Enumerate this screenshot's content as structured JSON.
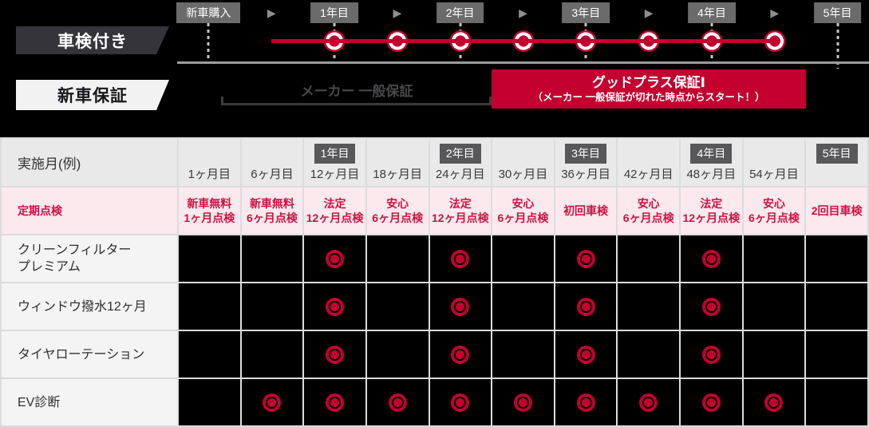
{
  "colors": {
    "brand_red": "#c3002f",
    "red_text": "#d01141",
    "pink_bg": "#fbe9ed",
    "timeline_badge_gray": "#6b6b6b",
    "table_badge_gray": "#58585b"
  },
  "timeline": {
    "inspection_label": "車検付き",
    "warranty_label": "新車保証",
    "arrow_glyph": "▶",
    "markers": [
      {
        "type": "milestone",
        "label": "新車購入",
        "dotted": true,
        "circle": false
      },
      {
        "type": "arrow",
        "dotted": false,
        "circle": false
      },
      {
        "type": "milestone",
        "label": "1年目",
        "dotted": true,
        "circle": true
      },
      {
        "type": "arrow",
        "dotted": false,
        "circle": true
      },
      {
        "type": "milestone",
        "label": "2年目",
        "dotted": true,
        "circle": true
      },
      {
        "type": "arrow",
        "dotted": false,
        "circle": true
      },
      {
        "type": "milestone",
        "label": "3年目",
        "dotted": true,
        "circle": true
      },
      {
        "type": "arrow",
        "dotted": false,
        "circle": true
      },
      {
        "type": "milestone",
        "label": "4年目",
        "dotted": true,
        "circle": true
      },
      {
        "type": "arrow",
        "dotted": false,
        "circle": true
      },
      {
        "type": "milestone",
        "label": "5年目",
        "dotted": true,
        "circle": false
      }
    ],
    "maker_warranty": "メーカー 一般保証",
    "goodplus_title": "グッドプラス保証Ⅰ",
    "goodplus_sub": "（メーカー 一般保証が切れた時点からスタート！）"
  },
  "table": {
    "corner_label": "実施月(例)",
    "columns": [
      {
        "year": "",
        "month": "1ヶ月目"
      },
      {
        "year": "",
        "month": "6ヶ月目"
      },
      {
        "year": "1年目",
        "month": "12ヶ月目"
      },
      {
        "year": "",
        "month": "18ヶ月目"
      },
      {
        "year": "2年目",
        "month": "24ヶ月目"
      },
      {
        "year": "",
        "month": "30ヶ月目"
      },
      {
        "year": "3年目",
        "month": "36ヶ月目"
      },
      {
        "year": "",
        "month": "42ヶ月目"
      },
      {
        "year": "4年目",
        "month": "48ヶ月目"
      },
      {
        "year": "",
        "month": "54ヶ月目"
      },
      {
        "year": "5年目",
        "month": ""
      }
    ],
    "inspection_row": {
      "label": "定期点検",
      "cells": [
        [
          "新車無料",
          "1ヶ月点検"
        ],
        [
          "新車無料",
          "6ヶ月点検"
        ],
        [
          "法定",
          "12ヶ月点検"
        ],
        [
          "安心",
          "6ヶ月点検"
        ],
        [
          "法定",
          "12ヶ月点検"
        ],
        [
          "安心",
          "6ヶ月点検"
        ],
        [
          "初回車検"
        ],
        [
          "安心",
          "6ヶ月点検"
        ],
        [
          "法定",
          "12ヶ月点検"
        ],
        [
          "安心",
          "6ヶ月点検"
        ],
        [
          "2回目車検"
        ]
      ]
    },
    "service_rows": [
      {
        "label": [
          "クリーンフィルター",
          "プレミアム"
        ],
        "marks": [
          0,
          0,
          1,
          0,
          1,
          0,
          1,
          0,
          1,
          0,
          0
        ]
      },
      {
        "label": [
          "ウィンドウ撥水12ヶ月"
        ],
        "marks": [
          0,
          0,
          1,
          0,
          1,
          0,
          1,
          0,
          1,
          0,
          0
        ]
      },
      {
        "label": [
          "タイヤローテーション"
        ],
        "marks": [
          0,
          0,
          1,
          0,
          1,
          0,
          1,
          0,
          1,
          0,
          0
        ]
      },
      {
        "label": [
          "EV診断"
        ],
        "marks": [
          0,
          1,
          1,
          1,
          1,
          1,
          1,
          1,
          1,
          1,
          0
        ]
      }
    ]
  }
}
